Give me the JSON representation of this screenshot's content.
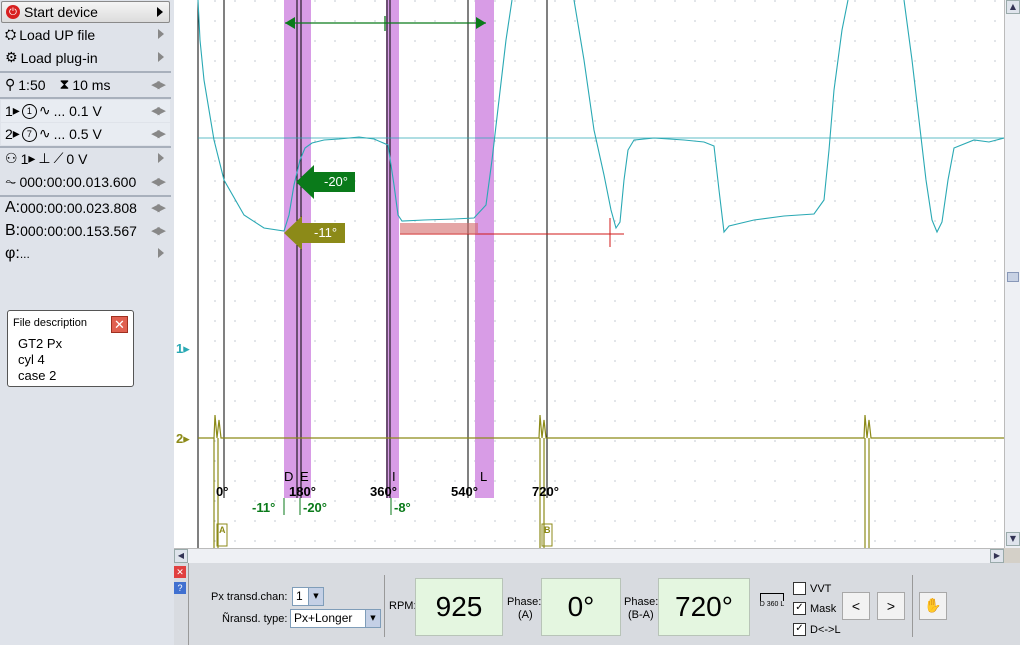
{
  "sidebar": {
    "start_device": "Start device",
    "load_up_file": "Load UP file",
    "load_plugin": "Load plug-in",
    "scale": "1:50",
    "timebase": "10 ms",
    "ch1_no": "1",
    "ch1_probe": "1",
    "ch1_range": "... 0.1 V",
    "ch2_no": "2",
    "ch2_probe": "7",
    "ch2_range": "... 0.5 V",
    "trig_ch": "1",
    "trig_level": "0 V",
    "pretrigger": "000:00:00.013.600",
    "cursor_a_label": "A:",
    "cursor_a": "000:00:00.023.808",
    "cursor_b_label": "B:",
    "cursor_b": "000:00:00.153.567",
    "phi_label": "φ:",
    "phi": "..."
  },
  "file_description": {
    "title": "File description",
    "lines": [
      "GT2 Px",
      "cyl 4",
      "case 2"
    ]
  },
  "plot": {
    "ch1_marker": "1",
    "ch2_marker": "2",
    "arrow_green": "-20°",
    "arrow_olive": "-11°",
    "phase_letters": [
      "D",
      "E",
      "I",
      "L"
    ],
    "degree_ticks": [
      "0°",
      "180°",
      "360°",
      "540°",
      "720°"
    ],
    "angle_labels": [
      "-11°",
      "-20°",
      "-8°"
    ],
    "marker_a": "A",
    "marker_b": "B",
    "colors": {
      "ch1": "#2aa9b4",
      "ch2": "#8c8a18",
      "band": "#d89ce6",
      "green": "#0a7a1a",
      "red": "#d01818"
    }
  },
  "bottom": {
    "px_chan_label": "Px transd.chan:",
    "px_chan_value": "1",
    "transd_type_label": "Ñransd. type:",
    "transd_type_value": "Px+Longer",
    "rpm_label": "RPM:",
    "rpm_value": "925",
    "phase_a_label": "Phase:",
    "phase_a_sub": "(A)",
    "phase_a_value": "0°",
    "phase_ba_label": "Phase:",
    "phase_ba_sub": "(B-A)",
    "phase_ba_value": "720°",
    "d360_label": "D 360 L",
    "vvt_label": "VVT",
    "mask_label": "Mask",
    "dl_label": "D<->L",
    "vvt_checked": false,
    "mask_checked": true,
    "dl_checked": true,
    "prev": "<",
    "next": ">"
  }
}
